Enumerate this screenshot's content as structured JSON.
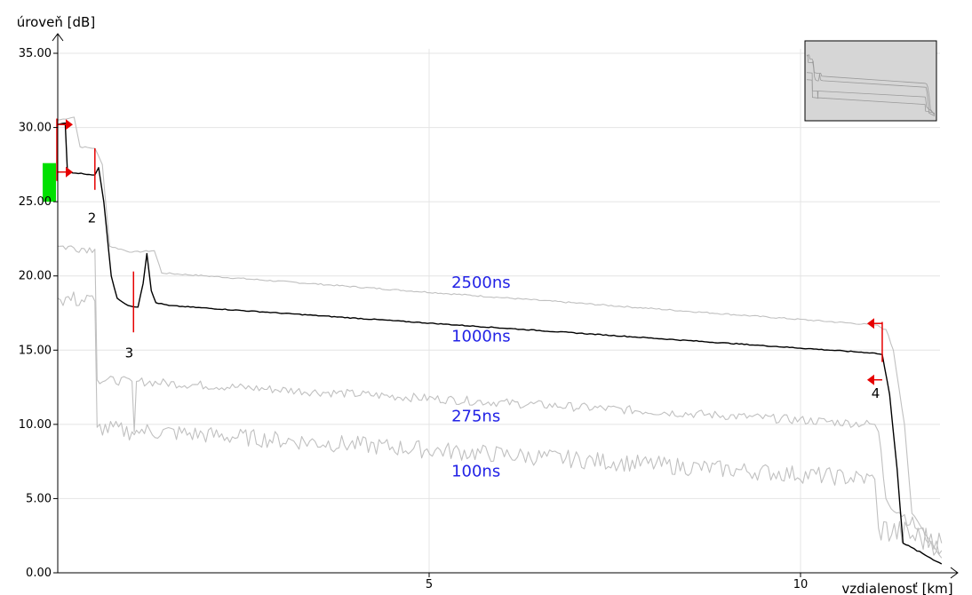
{
  "chart_data": {
    "type": "line",
    "xlabel": "vzdialenosť [km]",
    "ylabel": "úroveň [dB]",
    "xlim": [
      0,
      11.9
    ],
    "ylim": [
      0,
      35
    ],
    "x_ticks": [
      {
        "v": 5,
        "label": "5"
      },
      {
        "v": 10,
        "label": "10"
      }
    ],
    "y_ticks": [
      {
        "v": 0,
        "label": "0.00"
      },
      {
        "v": 5,
        "label": "5.00"
      },
      {
        "v": 10,
        "label": "10.00"
      },
      {
        "v": 15,
        "label": "15.00"
      },
      {
        "v": 20,
        "label": "20.00"
      },
      {
        "v": 25,
        "label": "25.00"
      },
      {
        "v": 30,
        "label": "30.00"
      },
      {
        "v": 35,
        "label": "35.00"
      }
    ],
    "grid": true,
    "colors": {
      "highlight": "#000000",
      "trace": "#c0c0c0",
      "label": "#2323e6",
      "marker": "#e60000",
      "launch": "#00e000"
    },
    "series": [
      {
        "name": "2500ns",
        "highlight": false,
        "noise": 0.05,
        "points": [
          [
            0,
            30.5
          ],
          [
            0.22,
            30.7
          ],
          [
            0.3,
            28.7
          ],
          [
            0.5,
            28.6
          ],
          [
            0.6,
            27.5
          ],
          [
            0.7,
            22.0
          ],
          [
            1.0,
            21.6
          ],
          [
            1.3,
            21.7
          ],
          [
            1.4,
            20.2
          ],
          [
            2.0,
            20.0
          ],
          [
            11.0,
            16.7
          ],
          [
            11.15,
            16.4
          ],
          [
            11.25,
            15.0
          ],
          [
            11.4,
            10.0
          ],
          [
            11.5,
            4.0
          ],
          [
            11.9,
            1.0
          ]
        ]
      },
      {
        "name": "1000ns",
        "highlight": true,
        "noise": 0.03,
        "points": [
          [
            0,
            30.2
          ],
          [
            0.1,
            30.3
          ],
          [
            0.13,
            27.0
          ],
          [
            0.5,
            26.8
          ],
          [
            0.55,
            27.3
          ],
          [
            0.62,
            25.0
          ],
          [
            0.72,
            20.0
          ],
          [
            0.8,
            18.5
          ],
          [
            0.95,
            18.0
          ],
          [
            1.08,
            17.9
          ],
          [
            1.15,
            19.5
          ],
          [
            1.2,
            21.5
          ],
          [
            1.26,
            19.0
          ],
          [
            1.32,
            18.2
          ],
          [
            1.5,
            18.0
          ],
          [
            11.0,
            14.8
          ],
          [
            11.1,
            14.7
          ],
          [
            11.2,
            12.0
          ],
          [
            11.3,
            7.0
          ],
          [
            11.38,
            2.0
          ],
          [
            11.9,
            0.6
          ]
        ]
      },
      {
        "name": "275ns",
        "highlight": false,
        "noise": 0.3,
        "points": [
          [
            0,
            22.0
          ],
          [
            0.5,
            21.8
          ],
          [
            0.53,
            13.0
          ],
          [
            1.0,
            12.9
          ],
          [
            1.03,
            9.5
          ],
          [
            1.06,
            12.9
          ],
          [
            11.0,
            10.0
          ],
          [
            11.05,
            9.5
          ],
          [
            11.15,
            5.0
          ],
          [
            11.9,
            1.5
          ]
        ]
      },
      {
        "name": "100ns",
        "highlight": false,
        "noise": 0.6,
        "points": [
          [
            0,
            18.5
          ],
          [
            0.5,
            18.3
          ],
          [
            0.53,
            9.8
          ],
          [
            1.0,
            9.5
          ],
          [
            1.03,
            9.3
          ],
          [
            1.06,
            9.6
          ],
          [
            11.0,
            6.3
          ],
          [
            11.05,
            3.0
          ],
          [
            11.9,
            2.0
          ]
        ]
      }
    ],
    "series_label_positions": [
      {
        "name": "2500ns",
        "x": 5.3,
        "y": 19.2
      },
      {
        "name": "1000ns",
        "x": 5.3,
        "y": 15.6
      },
      {
        "name": "275ns",
        "x": 5.3,
        "y": 10.2
      },
      {
        "name": "100ns",
        "x": 5.3,
        "y": 6.5
      }
    ],
    "events": [
      {
        "label": "2",
        "x": 0.5,
        "y": 23.6
      },
      {
        "label": "3",
        "x": 1.0,
        "y": 14.5
      },
      {
        "label": "4",
        "x": 11.05,
        "y": 11.8
      }
    ],
    "markers": [
      {
        "x": 0.0,
        "y": 30.2,
        "dir": "right"
      },
      {
        "x": 0.0,
        "y": 27.0,
        "dir": "right"
      },
      {
        "x": 11.1,
        "y": 16.8,
        "dir": "left"
      },
      {
        "x": 11.1,
        "y": 13.0,
        "dir": "left"
      }
    ],
    "event_ticks": [
      {
        "x": 0.5,
        "y1": 25.8,
        "y2": 28.6
      },
      {
        "x": 1.02,
        "y1": 16.2,
        "y2": 20.3
      },
      {
        "x": 11.1,
        "y1": 14.2,
        "y2": 16.9
      }
    ],
    "launch_zone": {
      "y1": 25.0,
      "y2": 27.6
    }
  }
}
